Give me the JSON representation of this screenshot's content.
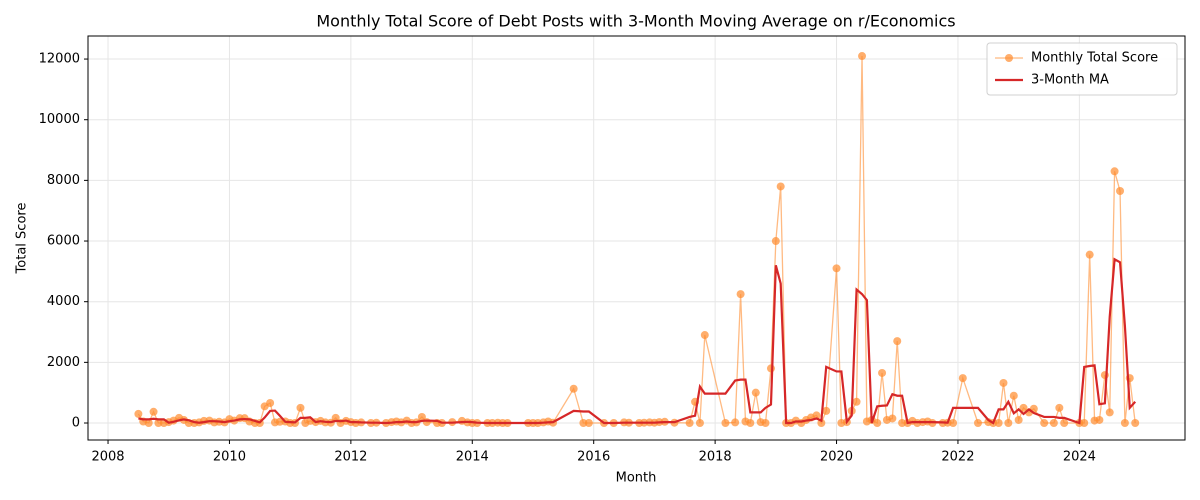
{
  "chart_data": {
    "type": "line",
    "title": "Monthly Total Score of Debt Posts with 3-Month Moving Average on r/Economics",
    "x_label": "Month",
    "y_label": "Total Score",
    "x": [
      2008.5,
      2008.58,
      2008.67,
      2008.75,
      2008.83,
      2008.92,
      2009.0,
      2009.08,
      2009.17,
      2009.25,
      2009.33,
      2009.42,
      2009.5,
      2009.58,
      2009.67,
      2009.75,
      2009.83,
      2009.92,
      2010.0,
      2010.08,
      2010.17,
      2010.25,
      2010.33,
      2010.42,
      2010.5,
      2010.58,
      2010.67,
      2010.75,
      2010.83,
      2010.92,
      2011.0,
      2011.08,
      2011.17,
      2011.25,
      2011.33,
      2011.42,
      2011.5,
      2011.58,
      2011.67,
      2011.75,
      2011.83,
      2011.92,
      2012.0,
      2012.08,
      2012.17,
      2012.33,
      2012.42,
      2012.58,
      2012.67,
      2012.75,
      2012.83,
      2012.92,
      2013.0,
      2013.08,
      2013.17,
      2013.25,
      2013.42,
      2013.5,
      2013.67,
      2013.83,
      2013.92,
      2014.0,
      2014.08,
      2014.25,
      2014.33,
      2014.42,
      2014.5,
      2014.58,
      2014.92,
      2015.0,
      2015.08,
      2015.17,
      2015.25,
      2015.33,
      2015.67,
      2015.83,
      2015.92,
      2016.17,
      2016.33,
      2016.5,
      2016.58,
      2016.75,
      2016.83,
      2016.92,
      2017.0,
      2017.08,
      2017.17,
      2017.33,
      2017.58,
      2017.67,
      2017.75,
      2017.83,
      2018.17,
      2018.33,
      2018.42,
      2018.5,
      2018.58,
      2018.67,
      2018.75,
      2018.83,
      2018.92,
      2019.0,
      2019.08,
      2019.17,
      2019.25,
      2019.33,
      2019.42,
      2019.5,
      2019.58,
      2019.67,
      2019.75,
      2019.83,
      2020.0,
      2020.08,
      2020.17,
      2020.25,
      2020.33,
      2020.42,
      2020.5,
      2020.58,
      2020.67,
      2020.75,
      2020.83,
      2020.92,
      2021.0,
      2021.08,
      2021.17,
      2021.25,
      2021.33,
      2021.42,
      2021.5,
      2021.58,
      2021.75,
      2021.83,
      2021.92,
      2022.08,
      2022.33,
      2022.5,
      2022.58,
      2022.67,
      2022.75,
      2022.83,
      2022.92,
      2023.0,
      2023.08,
      2023.17,
      2023.25,
      2023.42,
      2023.58,
      2023.67,
      2023.75,
      2024.0,
      2024.08,
      2024.17,
      2024.25,
      2024.33,
      2024.42,
      2024.5,
      2024.58,
      2024.67,
      2024.75,
      2024.83,
      2024.92
    ],
    "series": [
      {
        "name": "Monthly Total Score",
        "color": "#ff8c2e",
        "marker": "circle",
        "values": [
          300,
          50,
          0,
          370,
          0,
          0,
          30,
          80,
          170,
          100,
          0,
          0,
          20,
          70,
          80,
          20,
          40,
          20,
          130,
          80,
          160,
          160,
          50,
          0,
          0,
          550,
          660,
          20,
          40,
          50,
          0,
          0,
          500,
          0,
          70,
          30,
          70,
          20,
          10,
          170,
          0,
          70,
          30,
          0,
          20,
          0,
          10,
          0,
          30,
          50,
          20,
          80,
          0,
          20,
          200,
          30,
          0,
          0,
          30,
          70,
          20,
          0,
          0,
          0,
          0,
          10,
          0,
          0,
          0,
          0,
          0,
          20,
          50,
          10,
          1130,
          0,
          0,
          0,
          0,
          20,
          10,
          0,
          10,
          20,
          10,
          30,
          40,
          10,
          0,
          700,
          0,
          2900,
          0,
          20,
          4250,
          50,
          0,
          1000,
          30,
          0,
          1800,
          6000,
          7800,
          0,
          0,
          80,
          0,
          100,
          180,
          250,
          0,
          400,
          5100,
          0,
          30,
          400,
          700,
          12100,
          50,
          100,
          0,
          1650,
          100,
          150,
          2700,
          0,
          0,
          70,
          0,
          30,
          50,
          0,
          0,
          10,
          0,
          1480,
          0,
          30,
          0,
          0,
          1320,
          0,
          900,
          100,
          500,
          350,
          470,
          0,
          0,
          500,
          0,
          0,
          0,
          5550,
          80,
          100,
          1580,
          350,
          8300,
          7650,
          0,
          1480,
          0
        ]
      },
      {
        "name": "3-Month MA",
        "color": "#d62728",
        "values": [
          150,
          120,
          120,
          140,
          120,
          120,
          10,
          40,
          90,
          120,
          90,
          30,
          10,
          30,
          60,
          60,
          50,
          30,
          60,
          80,
          120,
          130,
          120,
          70,
          20,
          180,
          400,
          410,
          240,
          40,
          30,
          20,
          170,
          170,
          190,
          30,
          60,
          40,
          30,
          70,
          60,
          80,
          30,
          30,
          20,
          10,
          10,
          0,
          10,
          30,
          30,
          50,
          30,
          30,
          70,
          80,
          70,
          10,
          10,
          30,
          40,
          30,
          10,
          0,
          0,
          0,
          0,
          0,
          0,
          0,
          0,
          10,
          20,
          30,
          400,
          380,
          380,
          0,
          0,
          10,
          10,
          10,
          10,
          10,
          10,
          20,
          30,
          30,
          200,
          240,
          1200,
          970,
          970,
          1400,
          1430,
          1430,
          350,
          350,
          350,
          500,
          610,
          5200,
          4600,
          0,
          0,
          50,
          50,
          80,
          100,
          150,
          80,
          1850,
          1700,
          1700,
          40,
          250,
          4400,
          4250,
          4050,
          0,
          550,
          570,
          580,
          950,
          900,
          900,
          0,
          30,
          30,
          30,
          30,
          30,
          20,
          10,
          500,
          500,
          500,
          100,
          0,
          450,
          450,
          700,
          320,
          450,
          300,
          450,
          330,
          200,
          200,
          170,
          170,
          0,
          1850,
          1880,
          1900,
          620,
          650,
          3500,
          5400,
          5300,
          3200,
          500,
          700
        ]
      }
    ],
    "xlim": [
      2007.67,
      2025.74
    ],
    "xticks": [
      2008,
      2010,
      2012,
      2014,
      2016,
      2018,
      2020,
      2022,
      2024
    ],
    "ylim": [
      -560,
      12760
    ],
    "yticks": [
      0,
      2000,
      4000,
      6000,
      8000,
      10000,
      12000
    ],
    "grid": true,
    "legend": "upper right"
  }
}
